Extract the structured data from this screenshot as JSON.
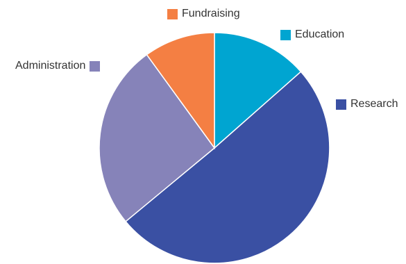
{
  "chart_data": {
    "type": "pie",
    "title": "",
    "legend_placement": "labels around the pie",
    "start_angle_deg": 0,
    "direction": "clockwise",
    "slices": [
      {
        "label": "Education",
        "value": 13.5,
        "color": "#00a5d1"
      },
      {
        "label": "Research",
        "value": 50.5,
        "color": "#3a50a3"
      },
      {
        "label": "Administration",
        "value": 26,
        "color": "#8683b9"
      },
      {
        "label": "Fundraising",
        "value": 10,
        "color": "#f47f43"
      }
    ]
  }
}
